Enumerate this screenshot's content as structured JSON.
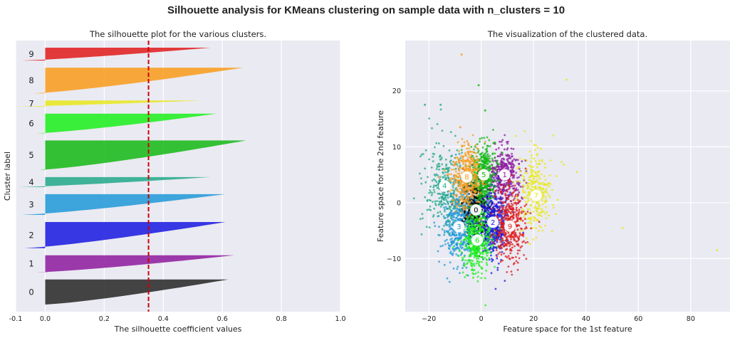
{
  "suptitle": "Silhouette analysis for KMeans clustering on sample data with n_clusters = 10",
  "chart_data": [
    {
      "type": "area",
      "title": "The silhouette plot for the various clusters.",
      "xlabel": "The silhouette coefficient values",
      "ylabel": "Cluster label",
      "xlim": [
        -0.1,
        1.0
      ],
      "xticks": [
        "-0.1",
        "0.0",
        "0.2",
        "0.4",
        "0.6",
        "0.8",
        "1.0"
      ],
      "xtick_values": [
        -0.1,
        0.0,
        0.2,
        0.4,
        0.6,
        0.8,
        1.0
      ],
      "grid": true,
      "average_silhouette": 0.35,
      "average_line_color": "#cc0000",
      "clusters": [
        {
          "label": "0",
          "color": "#262626",
          "size": 1210,
          "max": 0.62,
          "min": 0.0
        },
        {
          "label": "1",
          "color": "#8e1a9e",
          "size": 820,
          "max": 0.64,
          "min": -0.03
        },
        {
          "label": "2",
          "color": "#1818e0",
          "size": 1260,
          "max": 0.61,
          "min": -0.07
        },
        {
          "label": "3",
          "color": "#1e98d8",
          "size": 1000,
          "max": 0.61,
          "min": -0.08
        },
        {
          "label": "4",
          "color": "#21a88a",
          "size": 480,
          "max": 0.56,
          "min": -0.09
        },
        {
          "label": "5",
          "color": "#14b814",
          "size": 1420,
          "max": 0.68,
          "min": -0.02
        },
        {
          "label": "6",
          "color": "#1af01a",
          "size": 950,
          "max": 0.58,
          "min": -0.03
        },
        {
          "label": "7",
          "color": "#e8e81a",
          "size": 290,
          "max": 0.53,
          "min": -0.11
        },
        {
          "label": "8",
          "color": "#f99b1a",
          "size": 1240,
          "max": 0.67,
          "min": -0.04
        },
        {
          "label": "9",
          "color": "#e01a1a",
          "size": 620,
          "max": 0.56,
          "min": -0.08
        }
      ]
    },
    {
      "type": "scatter",
      "title": "The visualization of the clustered data.",
      "xlabel": "Feature space for the 1st feature",
      "ylabel": "Feature space for the 2nd feature",
      "xlim": [
        -29,
        95
      ],
      "ylim": [
        -19.5,
        29
      ],
      "xticks": [
        -20,
        0,
        20,
        40,
        60,
        80
      ],
      "yticks": [
        -10,
        0,
        10,
        20
      ],
      "grid": true,
      "clusters": [
        {
          "label": "0",
          "color": "#000000",
          "center": [
            -2,
            -1.3
          ],
          "spread": [
            2.6,
            2.7
          ],
          "n": 520
        },
        {
          "label": "1",
          "color": "#8e1a9e",
          "center": [
            9,
            5
          ],
          "spread": [
            3.0,
            2.4
          ],
          "n": 420
        },
        {
          "label": "2",
          "color": "#1818e0",
          "center": [
            4.5,
            -3.5
          ],
          "spread": [
            2.6,
            3.0
          ],
          "n": 520
        },
        {
          "label": "3",
          "color": "#1e98d8",
          "center": [
            -8.5,
            -4.3
          ],
          "spread": [
            3.2,
            3.4
          ],
          "n": 460
        },
        {
          "label": "4",
          "color": "#21a88a",
          "center": [
            -14,
            3
          ],
          "spread": [
            4.2,
            4.0
          ],
          "n": 300
        },
        {
          "label": "5",
          "color": "#14b814",
          "center": [
            1,
            5
          ],
          "spread": [
            2.4,
            2.6
          ],
          "n": 480
        },
        {
          "label": "6",
          "color": "#1af01a",
          "center": [
            -1.5,
            -6.7
          ],
          "spread": [
            2.8,
            3.0
          ],
          "n": 420
        },
        {
          "label": "7",
          "color": "#e8e81a",
          "center": [
            21,
            1.3
          ],
          "spread": [
            3.4,
            3.6
          ],
          "n": 300
        },
        {
          "label": "8",
          "color": "#f99b1a",
          "center": [
            -5.5,
            4.6
          ],
          "spread": [
            2.6,
            2.8
          ],
          "n": 420
        },
        {
          "label": "9",
          "color": "#e01a1a",
          "center": [
            11,
            -4.2
          ],
          "spread": [
            3.0,
            3.3
          ],
          "n": 420
        }
      ],
      "outliers": [
        {
          "x": -7.5,
          "y": 26.5,
          "cluster": "8"
        },
        {
          "x": 32.5,
          "y": 22,
          "cluster": "7"
        },
        {
          "x": -1,
          "y": 21,
          "cluster": "5"
        },
        {
          "x": -21.5,
          "y": 17.5,
          "cluster": "4"
        },
        {
          "x": -15.5,
          "y": 17.5,
          "cluster": "4"
        },
        {
          "x": 54,
          "y": -4.5,
          "cluster": "7"
        },
        {
          "x": 90,
          "y": -8.5,
          "cluster": "7"
        },
        {
          "x": 36.5,
          "y": 5.5,
          "cluster": "7"
        },
        {
          "x": 31.5,
          "y": 6.8,
          "cluster": "7"
        },
        {
          "x": -8,
          "y": 13.5,
          "cluster": "8"
        },
        {
          "x": 1.5,
          "y": 16.5,
          "cluster": "5"
        }
      ]
    }
  ]
}
